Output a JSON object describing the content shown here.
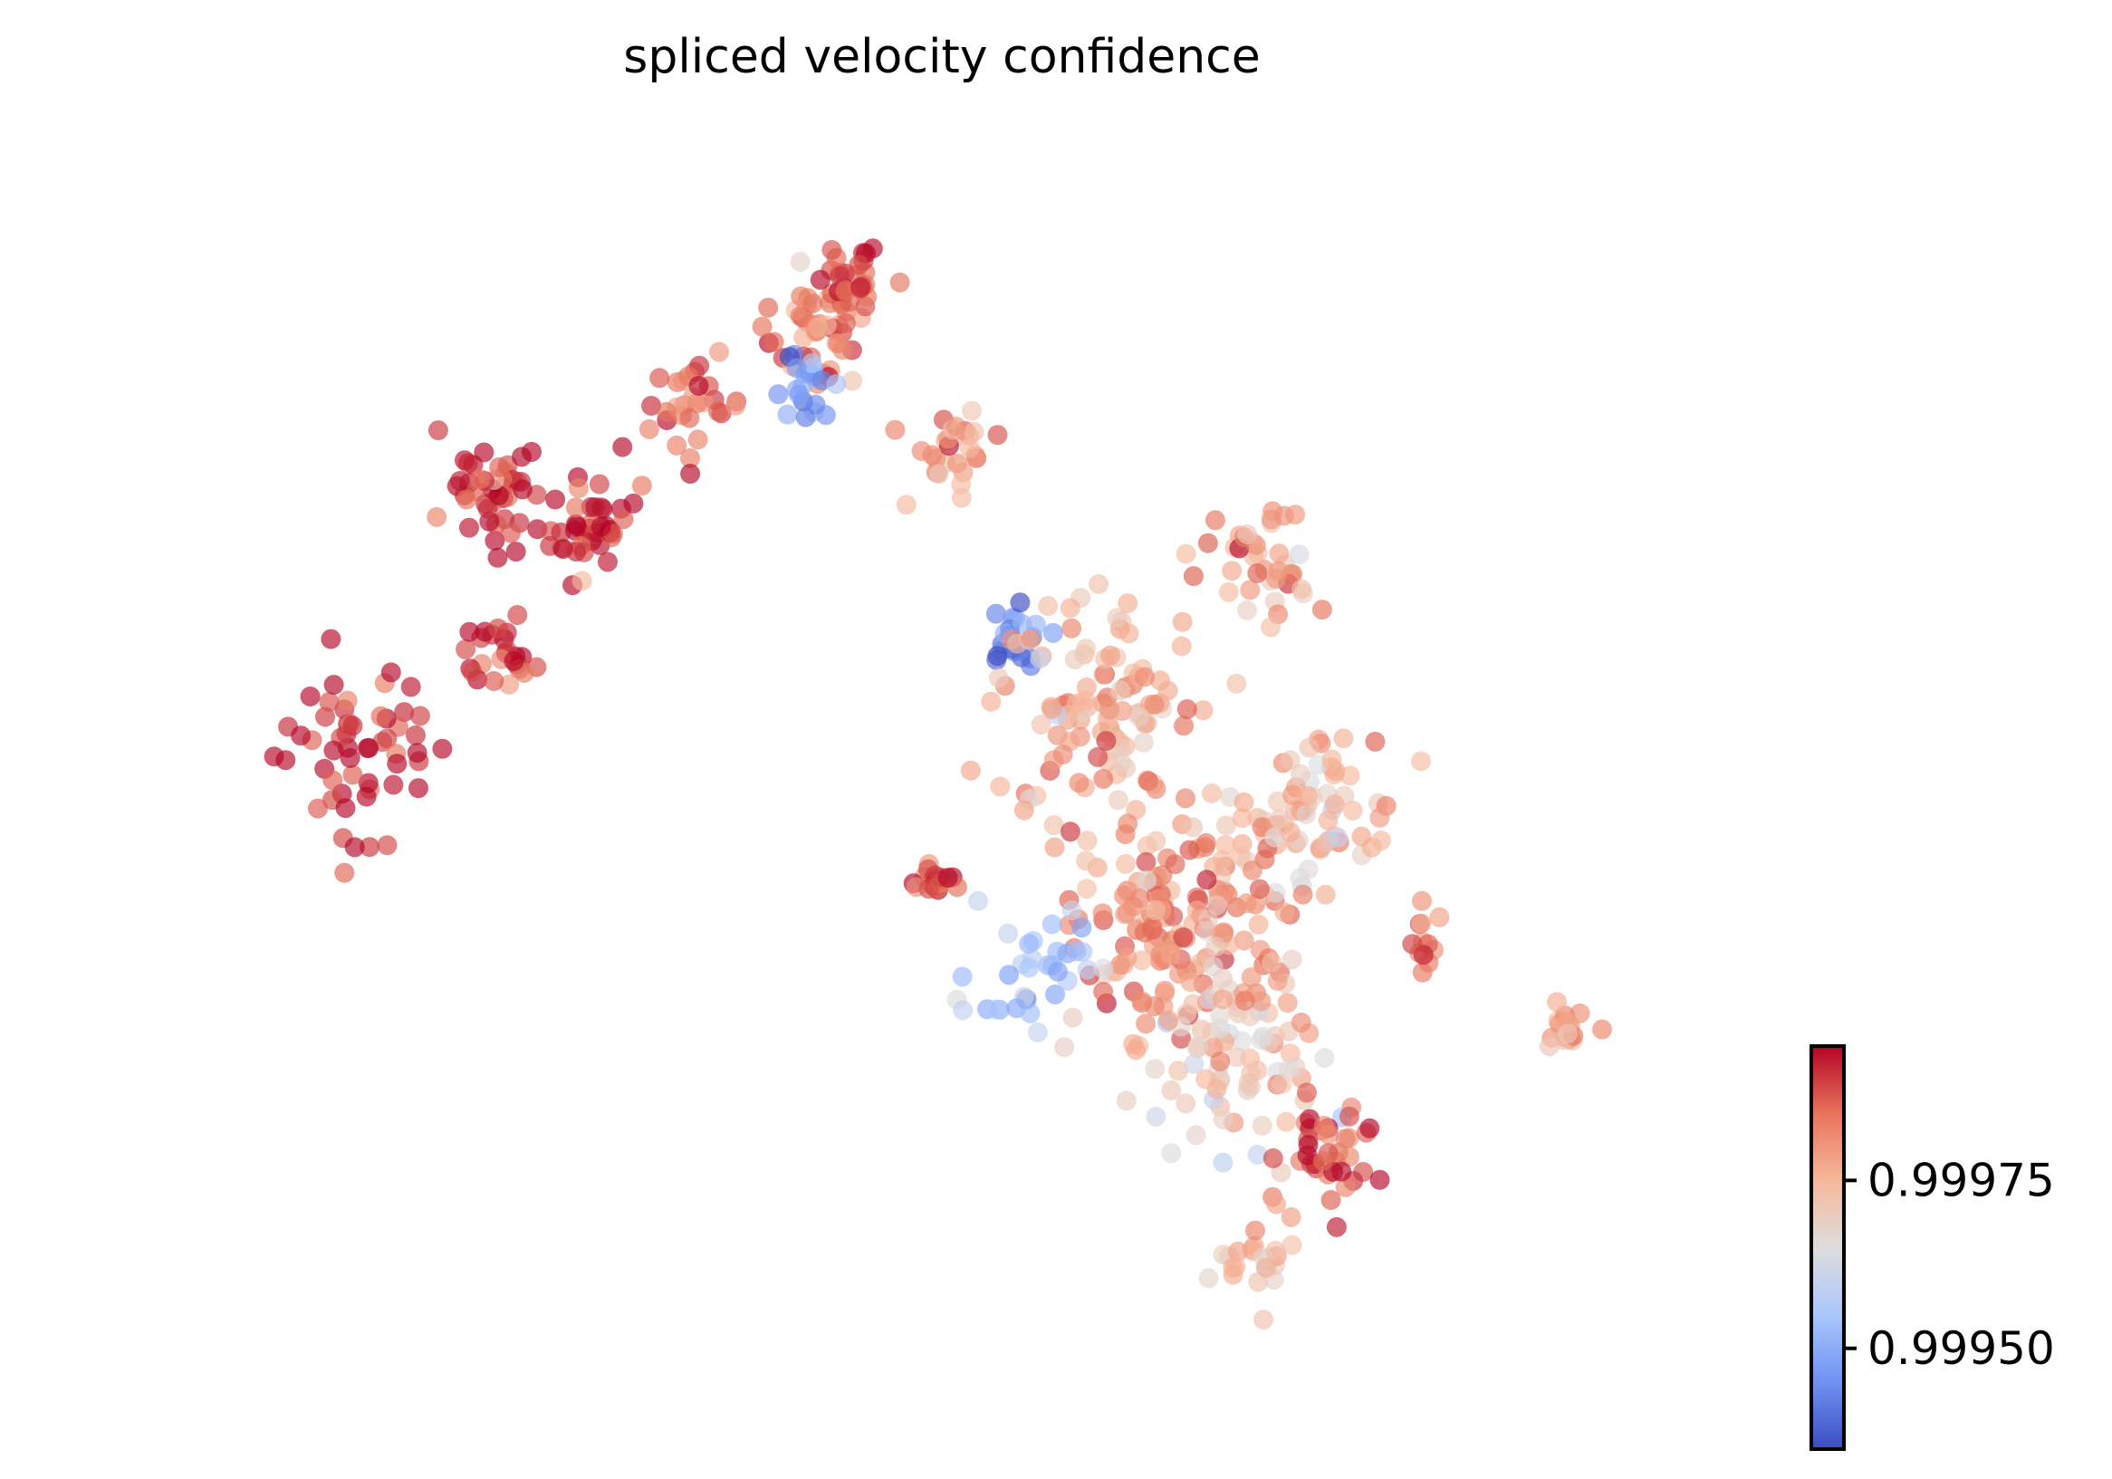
{
  "chart_data": {
    "type": "scatter",
    "title": "spliced velocity confidence",
    "xlabel": "",
    "ylabel": "",
    "axes_visible": false,
    "grid": false,
    "colormap": "coolwarm",
    "colormap_stops": [
      "#3b4cc0",
      "#6f92f3",
      "#aac7fd",
      "#dddddd",
      "#f7b89c",
      "#e7745b",
      "#b40426"
    ],
    "color_range": [
      0.99935,
      0.99995
    ],
    "colorbar": {
      "position": "bottom-right",
      "ticks": [
        {
          "value": 0.9995,
          "label": "0.99950"
        },
        {
          "value": 0.99975,
          "label": "0.99975"
        }
      ]
    },
    "xlim": [
      -3,
      23
    ],
    "ylim": [
      -14,
      4
    ],
    "clusters": [
      {
        "cx": 1.0,
        "cy": -4.6,
        "spread": 1.3,
        "n": 55,
        "value": 0.99994
      },
      {
        "cx": 3.2,
        "cy": -3.2,
        "spread": 0.6,
        "n": 25,
        "value": 0.99991
      },
      {
        "cx": 3.1,
        "cy": -0.9,
        "spread": 0.8,
        "n": 45,
        "value": 0.99993
      },
      {
        "cx": 4.7,
        "cy": -1.4,
        "spread": 0.7,
        "n": 40,
        "value": 0.99992
      },
      {
        "cx": 6.3,
        "cy": 0.3,
        "spread": 0.7,
        "n": 30,
        "value": 0.99986
      },
      {
        "cx": 8.1,
        "cy": 1.5,
        "spread": 0.8,
        "n": 45,
        "value": 0.99983
      },
      {
        "cx": 8.6,
        "cy": 2.2,
        "spread": 0.5,
        "n": 25,
        "value": 0.99988
      },
      {
        "cx": 7.9,
        "cy": 0.6,
        "spread": 0.5,
        "n": 20,
        "value": 0.99948
      },
      {
        "cx": 10.2,
        "cy": -0.3,
        "spread": 0.6,
        "n": 28,
        "value": 0.9998
      },
      {
        "cx": 11.2,
        "cy": -2.8,
        "spread": 0.5,
        "n": 22,
        "value": 0.99943
      },
      {
        "cx": 14.9,
        "cy": -1.8,
        "spread": 0.9,
        "n": 40,
        "value": 0.99978
      },
      {
        "cx": 12.5,
        "cy": -3.9,
        "spread": 1.6,
        "n": 110,
        "value": 0.99976
      },
      {
        "cx": 13.6,
        "cy": -7.0,
        "spread": 1.6,
        "n": 140,
        "value": 0.9998
      },
      {
        "cx": 15.8,
        "cy": -5.5,
        "spread": 1.3,
        "n": 80,
        "value": 0.99974
      },
      {
        "cx": 14.6,
        "cy": -8.9,
        "spread": 1.4,
        "n": 90,
        "value": 0.99972
      },
      {
        "cx": 9.9,
        "cy": -6.4,
        "spread": 0.3,
        "n": 18,
        "value": 0.9999
      },
      {
        "cx": 16.2,
        "cy": -10.4,
        "spread": 0.8,
        "n": 35,
        "value": 0.99988
      },
      {
        "cx": 15.0,
        "cy": -11.9,
        "spread": 0.6,
        "n": 25,
        "value": 0.99972
      },
      {
        "cx": 17.6,
        "cy": -7.3,
        "spread": 0.4,
        "n": 12,
        "value": 0.99983
      },
      {
        "cx": 19.8,
        "cy": -8.6,
        "spread": 0.4,
        "n": 18,
        "value": 0.99978
      },
      {
        "cx": 11.4,
        "cy": -7.7,
        "spread": 0.9,
        "n": 35,
        "value": 0.99955
      }
    ]
  }
}
